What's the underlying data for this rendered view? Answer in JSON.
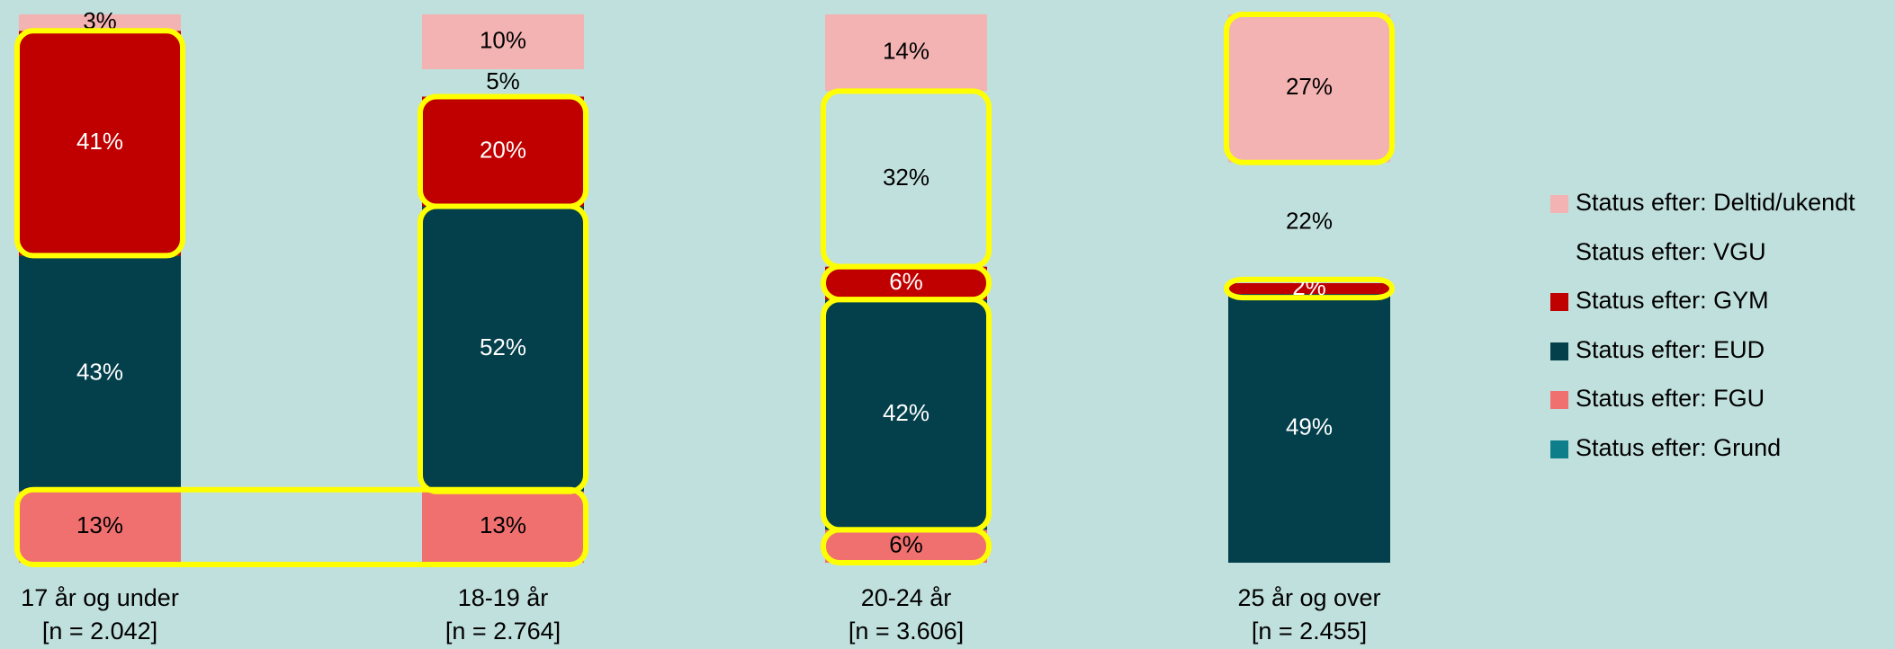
{
  "chart_data": {
    "type": "stacked-bar",
    "categories": [
      "17 år og under",
      "18-19 år",
      "20-24 år",
      "25 år og over"
    ],
    "category_sublabels": [
      "[n = 2.042]",
      "[n = 2.764]",
      "[n = 3.606]",
      "[n = 2.455]"
    ],
    "ylim": [
      0,
      100
    ],
    "legend": "right",
    "series": [
      {
        "name": "Status efter: Grund",
        "color": "#0e7f8a",
        "values": [
          0,
          0,
          0,
          0
        ]
      },
      {
        "name": "Status efter: FGU",
        "color": "#f07070",
        "values": [
          13,
          13,
          6,
          0
        ],
        "value_labels": [
          "13%",
          "13%",
          "6%",
          null
        ]
      },
      {
        "name": "Status efter: EUD",
        "color": "#03404c",
        "values": [
          43,
          52,
          42,
          49
        ],
        "value_labels": [
          "43%",
          "52%",
          "42%",
          "49%"
        ]
      },
      {
        "name": "Status efter: GYM",
        "color": "#c00000",
        "values": [
          41,
          20,
          6,
          2
        ],
        "value_labels": [
          "41%",
          "20%",
          "6%",
          "2%"
        ]
      },
      {
        "name": "Status efter: VGU",
        "color": "#c0e0dd",
        "values": [
          0,
          5,
          32,
          22
        ],
        "value_labels": [
          null,
          "5%",
          "32%",
          "22%"
        ]
      },
      {
        "name": "Status efter: Deltid/ukendt",
        "color": "#f4b3b3",
        "values": [
          3,
          10,
          14,
          27
        ],
        "value_labels": [
          "3%",
          "10%",
          "14%",
          "27%"
        ]
      }
    ]
  }
}
